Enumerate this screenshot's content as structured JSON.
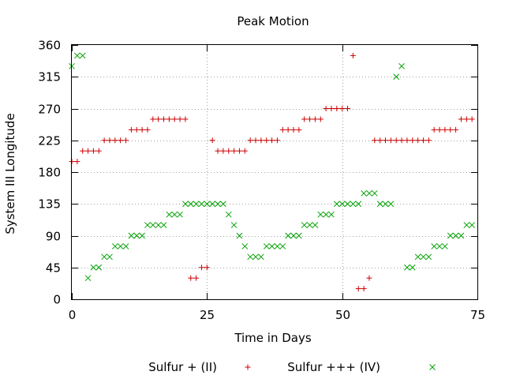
{
  "chart_data": {
    "type": "scatter",
    "title": "Peak Motion",
    "xlabel": "Time in Days",
    "ylabel": "System III Longitude",
    "xlim": [
      0,
      75
    ],
    "ylim": [
      0,
      360
    ],
    "xticks": [
      0,
      25,
      50,
      75
    ],
    "yticks": [
      0,
      45,
      90,
      135,
      180,
      225,
      270,
      315,
      360
    ],
    "grid": true,
    "legend_position": "bottom",
    "series": [
      {
        "name": "Sulfur + (II)",
        "marker": "plus",
        "color": "#cc0000",
        "x": [
          0,
          1,
          2,
          3,
          4,
          5,
          6,
          7,
          8,
          9,
          10,
          11,
          12,
          13,
          14,
          15,
          16,
          17,
          18,
          19,
          20,
          21,
          22,
          23,
          24,
          25,
          26,
          27,
          28,
          29,
          30,
          31,
          32,
          33,
          34,
          35,
          36,
          37,
          38,
          39,
          40,
          41,
          42,
          43,
          44,
          45,
          46,
          47,
          48,
          49,
          50,
          51,
          52,
          53,
          54,
          55,
          56,
          57,
          58,
          59,
          60,
          61,
          62,
          63,
          64,
          65,
          66,
          67,
          68,
          69,
          70,
          71,
          72,
          73,
          74
        ],
        "y": [
          195,
          195,
          210,
          210,
          210,
          210,
          225,
          225,
          225,
          225,
          225,
          240,
          240,
          240,
          240,
          255,
          255,
          255,
          255,
          255,
          255,
          255,
          30,
          30,
          45,
          45,
          225,
          210,
          210,
          210,
          210,
          210,
          210,
          225,
          225,
          225,
          225,
          225,
          225,
          240,
          240,
          240,
          240,
          255,
          255,
          255,
          255,
          270,
          270,
          270,
          270,
          270,
          345,
          15,
          15,
          30,
          225,
          225,
          225,
          225,
          225,
          225,
          225,
          225,
          225,
          225,
          225,
          240,
          240,
          240,
          240,
          240,
          255,
          255,
          255
        ]
      },
      {
        "name": "Sulfur +++ (IV)",
        "marker": "cross",
        "color": "#00a000",
        "x": [
          0,
          1,
          2,
          3,
          4,
          5,
          6,
          7,
          8,
          9,
          10,
          11,
          12,
          13,
          14,
          15,
          16,
          17,
          18,
          19,
          20,
          21,
          22,
          23,
          24,
          25,
          26,
          27,
          28,
          29,
          30,
          31,
          32,
          33,
          34,
          35,
          36,
          37,
          38,
          39,
          40,
          41,
          42,
          43,
          44,
          45,
          46,
          47,
          48,
          49,
          50,
          51,
          52,
          53,
          54,
          55,
          56,
          57,
          58,
          59,
          60,
          61,
          62,
          63,
          64,
          65,
          66,
          67,
          68,
          69,
          70,
          71,
          72,
          73,
          74
        ],
        "y": [
          330,
          345,
          345,
          30,
          45,
          45,
          60,
          60,
          75,
          75,
          75,
          90,
          90,
          90,
          105,
          105,
          105,
          105,
          120,
          120,
          120,
          135,
          135,
          135,
          135,
          135,
          135,
          135,
          135,
          120,
          105,
          90,
          75,
          60,
          60,
          60,
          75,
          75,
          75,
          75,
          90,
          90,
          90,
          105,
          105,
          105,
          120,
          120,
          120,
          135,
          135,
          135,
          135,
          135,
          150,
          150,
          150,
          135,
          135,
          135,
          315,
          330,
          45,
          45,
          60,
          60,
          60,
          75,
          75,
          75,
          90,
          90,
          90,
          105,
          105
        ]
      }
    ]
  }
}
